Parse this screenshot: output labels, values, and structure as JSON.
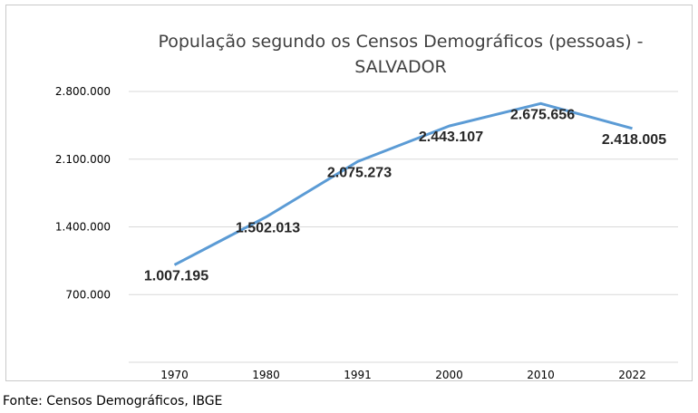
{
  "chart_data": {
    "type": "line",
    "title": "População segundo os Censos Demográficos (pessoas) -",
    "title_line2": "SALVADOR",
    "xlabel": "",
    "ylabel": "",
    "categories": [
      "1970",
      "1980",
      "1991",
      "2000",
      "2010",
      "2022"
    ],
    "values": [
      1007195,
      1502013,
      2075273,
      2443107,
      2675656,
      2418005
    ],
    "data_labels": [
      "1.007.195",
      "1.502.013",
      "2.075.273",
      "2.443.107",
      "2.675.656",
      "2.418.005"
    ],
    "y_ticks": [
      "700.000",
      "1.400.000",
      "2.100.000",
      "2.800.000"
    ],
    "y_tick_values": [
      700000,
      1400000,
      2100000,
      2800000
    ],
    "ylim": [
      0,
      2800000
    ],
    "grid": true,
    "line_color": "#5b9bd5"
  },
  "source_note": "Fonte: Censos Demográficos, IBGE"
}
